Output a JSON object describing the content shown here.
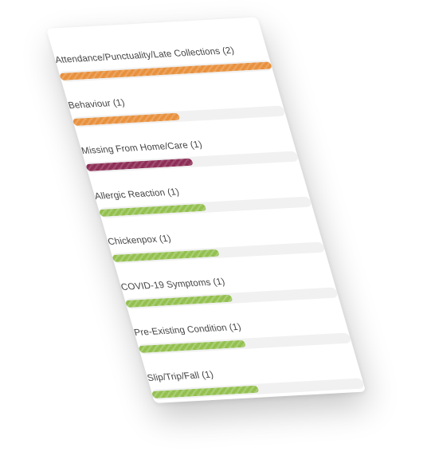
{
  "categories": [
    {
      "label": "Attendance/Punctuality/Late Collections (2)",
      "fraction": 1.0,
      "color": "#e8913e",
      "tone": "orange"
    },
    {
      "label": "Behaviour (1)",
      "fraction": 0.5,
      "color": "#e8913e",
      "tone": "orange"
    },
    {
      "label": "Missing From Home/Care (1)",
      "fraction": 0.5,
      "color": "#8e2f58",
      "tone": "plum"
    },
    {
      "label": "Allergic Reaction (1)",
      "fraction": 0.5,
      "color": "#93c04f",
      "tone": "green"
    },
    {
      "label": "Chickenpox (1)",
      "fraction": 0.5,
      "color": "#93c04f",
      "tone": "green"
    },
    {
      "label": "COVID-19 Symptoms (1)",
      "fraction": 0.5,
      "color": "#93c04f",
      "tone": "green"
    },
    {
      "label": "Pre-Existing Condition (1)",
      "fraction": 0.5,
      "color": "#93c04f",
      "tone": "green"
    },
    {
      "label": "Slip/Trip/Fall (1)",
      "fraction": 0.5,
      "color": "#93c04f",
      "tone": "green"
    }
  ]
}
